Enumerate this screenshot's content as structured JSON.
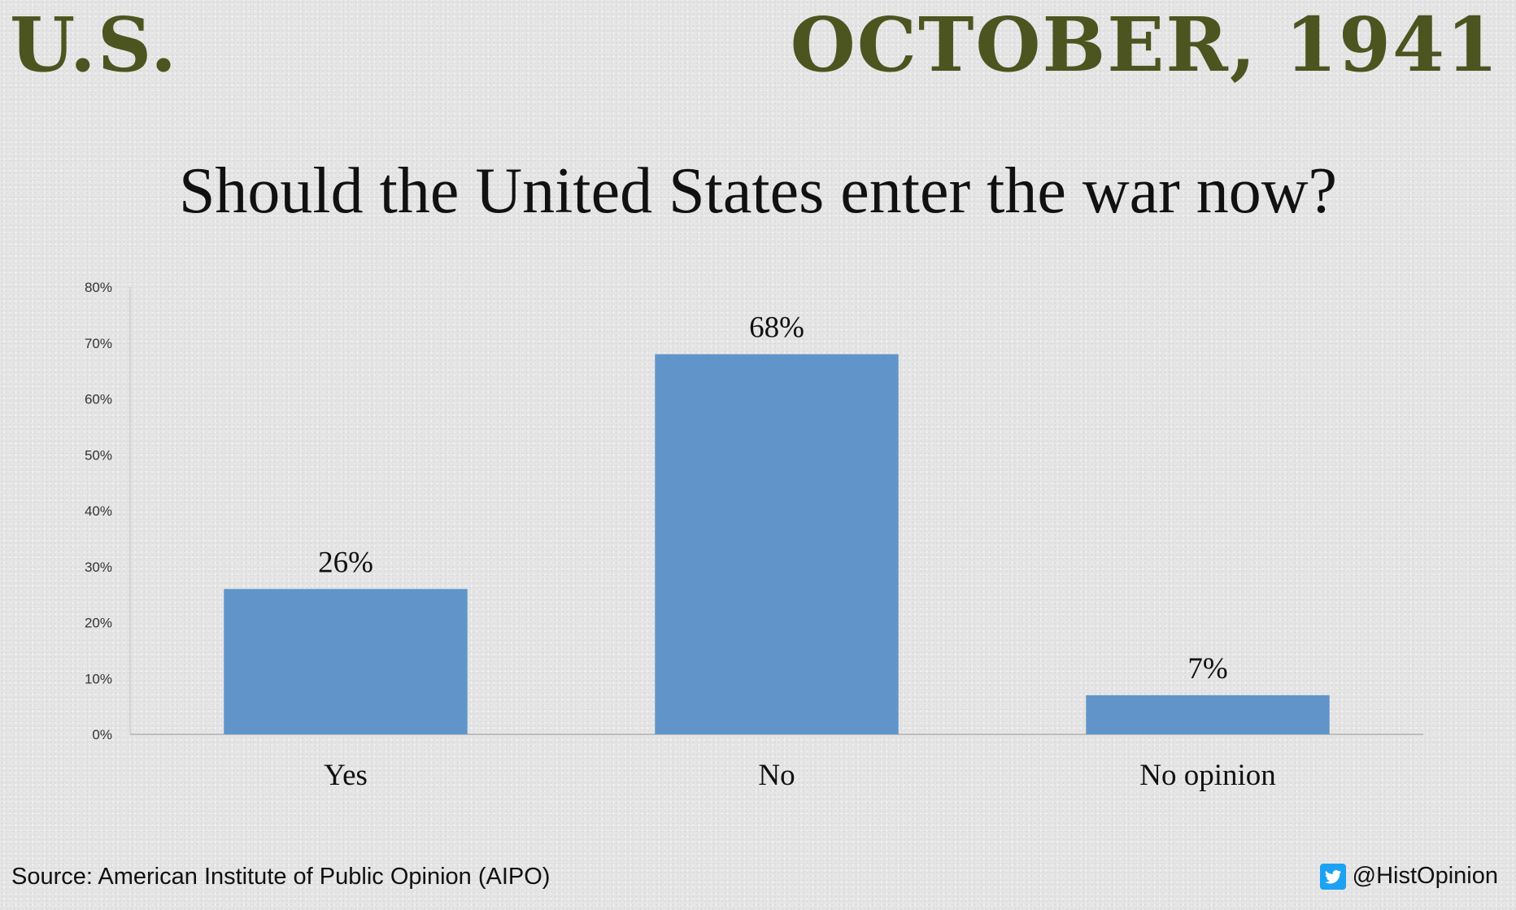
{
  "header": {
    "left": "U.S.",
    "right": "OCTOBER, 1941"
  },
  "chart_data": {
    "type": "bar",
    "title": "Should the United States enter the war now?",
    "categories": [
      "Yes",
      "No",
      "No opinion"
    ],
    "values": [
      26,
      68,
      7
    ],
    "data_labels": [
      "26%",
      "68%",
      "7%"
    ],
    "ylim": [
      0,
      80
    ],
    "yticks": [
      "0%",
      "10%",
      "20%",
      "30%",
      "40%",
      "50%",
      "60%",
      "70%",
      "80%"
    ],
    "xlabel": "",
    "ylabel": "",
    "grid": false,
    "legend": "none",
    "bar_color": "#6195c9"
  },
  "footer": {
    "source": "Source: American Institute of Public Opinion (AIPO)",
    "handle": "@HistOpinion",
    "handle_icon": "twitter-icon"
  }
}
